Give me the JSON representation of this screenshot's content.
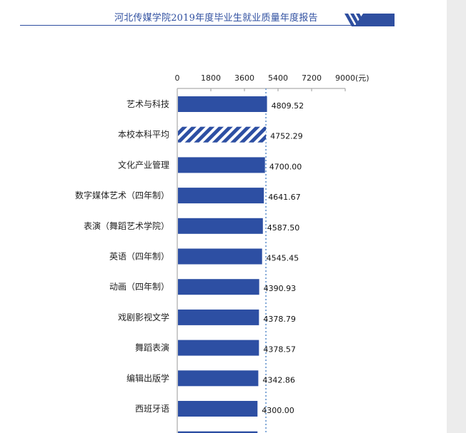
{
  "header": {
    "title": "河北传媒学院2019年度毕业生就业质量年度报告"
  },
  "colors": {
    "bar": "#2d4fa3",
    "accent": "#2f4fa0",
    "ref_line": "#7fa6d6"
  },
  "chart_data": {
    "type": "bar",
    "orientation": "horizontal",
    "unit": "(元)",
    "xlim": [
      0,
      9000
    ],
    "xticks": [
      "0",
      "1800",
      "3600",
      "5400",
      "7200",
      "9000"
    ],
    "categories": [
      "艺术与科技",
      "本校本科平均",
      "文化产业管理",
      "数字媒体艺术（四年制）",
      "表演（舞蹈艺术学院）",
      "英语（四年制）",
      "动画（四年制）",
      "戏剧影视文学",
      "舞蹈表演",
      "编辑出版学",
      "西班牙语"
    ],
    "values": [
      4809.52,
      4752.29,
      4700.0,
      4641.67,
      4587.5,
      4545.45,
      4390.93,
      4378.79,
      4378.57,
      4342.86,
      4300.0
    ],
    "value_labels": [
      "4809.52",
      "4752.29",
      "4700.00",
      "4641.67",
      "4587.50",
      "4545.45",
      "4390.93",
      "4378.79",
      "4378.57",
      "4342.86",
      "4300.00"
    ],
    "highlight_index": 1,
    "reference_value": 4752.29
  }
}
